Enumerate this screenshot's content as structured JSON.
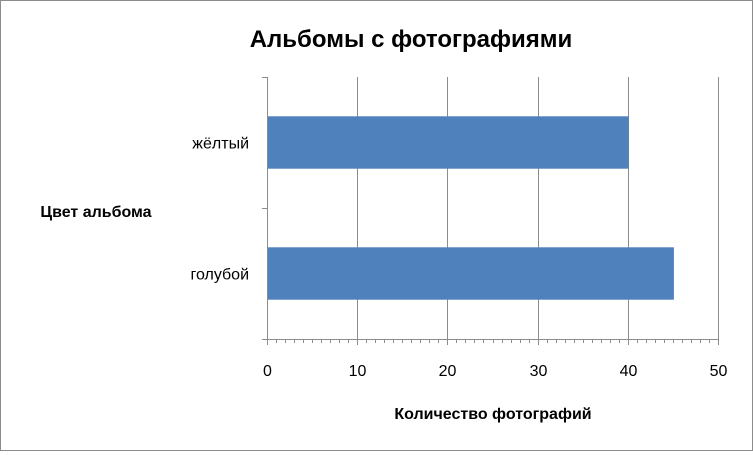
{
  "chart_data": {
    "type": "bar",
    "orientation": "horizontal",
    "title": "Альбомы с фотографиями",
    "xlabel": "Количество фотографий",
    "ylabel": "Цвет альбома",
    "categories": [
      "голубой",
      "жёлтый"
    ],
    "values": [
      45,
      40
    ],
    "xlim": [
      0,
      50
    ],
    "xticks": [
      0,
      10,
      20,
      30,
      40,
      50
    ],
    "grid": true,
    "legend": "none",
    "bar_color": "#4f81bd"
  }
}
